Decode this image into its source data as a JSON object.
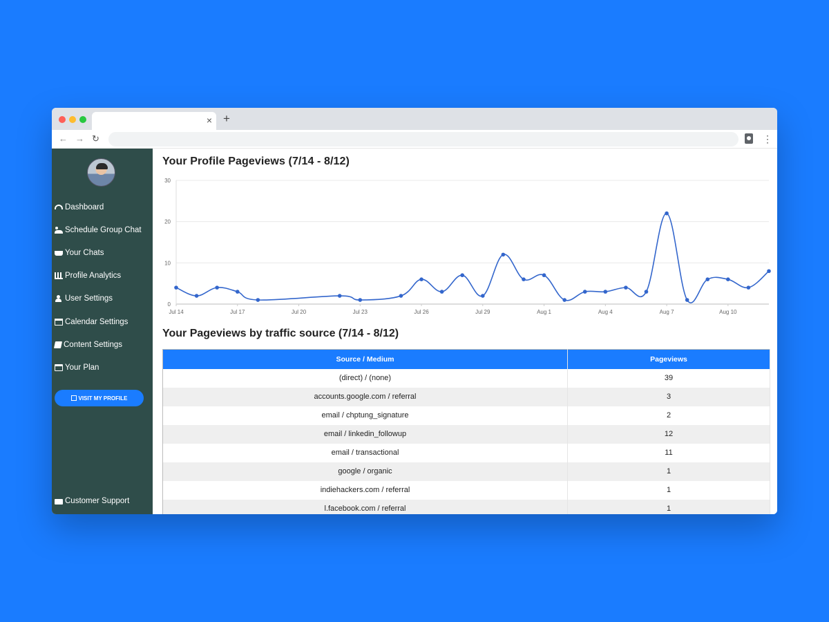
{
  "browser": {
    "tab_close": "×",
    "new_tab": "+",
    "nav_back": "←",
    "nav_forward": "→",
    "nav_reload": "↻",
    "menu": "⋮"
  },
  "sidebar": {
    "items": [
      {
        "label": "Dashboard",
        "icon": "dashboard-icon"
      },
      {
        "label": "Schedule Group Chat",
        "icon": "users-icon"
      },
      {
        "label": "Your Chats",
        "icon": "coffee-icon"
      },
      {
        "label": "Profile Analytics",
        "icon": "bar-chart-icon"
      },
      {
        "label": "User Settings",
        "icon": "user-icon"
      },
      {
        "label": "Calendar Settings",
        "icon": "calendar-icon"
      },
      {
        "label": "Content Settings",
        "icon": "book-icon"
      },
      {
        "label": "Your Plan",
        "icon": "credit-card-icon"
      }
    ],
    "visit_button": "VISIT MY PROFILE",
    "support": "Customer Support"
  },
  "main": {
    "chart_title": "Your Profile Pageviews (7/14 - 8/12)",
    "table_title": "Your Pageviews by traffic source (7/14 - 8/12)",
    "table": {
      "headers": [
        "Source / Medium",
        "Pageviews"
      ],
      "rows": [
        [
          "(direct) / (none)",
          "39"
        ],
        [
          "accounts.google.com / referral",
          "3"
        ],
        [
          "email / chptung_signature",
          "2"
        ],
        [
          "email / linkedin_followup",
          "12"
        ],
        [
          "email / transactional",
          "11"
        ],
        [
          "google / organic",
          "1"
        ],
        [
          "indiehackers.com / referral",
          "1"
        ],
        [
          "l.facebook.com / referral",
          "1"
        ]
      ]
    }
  },
  "chart_data": {
    "type": "line",
    "title": "Your Profile Pageviews (7/14 - 8/12)",
    "x": [
      "Jul 14",
      "Jul 15",
      "Jul 16",
      "Jul 17",
      "Jul 18",
      "Jul 19",
      "Jul 20",
      "Jul 21",
      "Jul 22",
      "Jul 23",
      "Jul 24",
      "Jul 25",
      "Jul 26",
      "Jul 27",
      "Jul 28",
      "Jul 29",
      "Jul 30",
      "Jul 31",
      "Aug 1",
      "Aug 2",
      "Aug 3",
      "Aug 4",
      "Aug 5",
      "Aug 6",
      "Aug 7",
      "Aug 8",
      "Aug 9",
      "Aug 10",
      "Aug 11",
      "Aug 12"
    ],
    "x_tick_labels": [
      "Jul 14",
      "Jul 17",
      "Jul 20",
      "Jul 23",
      "Jul 26",
      "Jul 29",
      "Aug 1",
      "Aug 4",
      "Aug 7",
      "Aug 10"
    ],
    "points": [
      {
        "x": "Jul 14",
        "y": 4
      },
      {
        "x": "Jul 15",
        "y": 2
      },
      {
        "x": "Jul 16",
        "y": 4
      },
      {
        "x": "Jul 17",
        "y": 3
      },
      {
        "x": "Jul 18",
        "y": 1
      },
      {
        "x": "Jul 22",
        "y": 2
      },
      {
        "x": "Jul 23",
        "y": 1
      },
      {
        "x": "Jul 25",
        "y": 2
      },
      {
        "x": "Jul 26",
        "y": 6
      },
      {
        "x": "Jul 27",
        "y": 3
      },
      {
        "x": "Jul 28",
        "y": 7
      },
      {
        "x": "Jul 29",
        "y": 2
      },
      {
        "x": "Jul 30",
        "y": 12
      },
      {
        "x": "Jul 31",
        "y": 6
      },
      {
        "x": "Aug 1",
        "y": 7
      },
      {
        "x": "Aug 2",
        "y": 1
      },
      {
        "x": "Aug 3",
        "y": 3
      },
      {
        "x": "Aug 4",
        "y": 3
      },
      {
        "x": "Aug 5",
        "y": 4
      },
      {
        "x": "Aug 6",
        "y": 3
      },
      {
        "x": "Aug 7",
        "y": 22
      },
      {
        "x": "Aug 8",
        "y": 1
      },
      {
        "x": "Aug 9",
        "y": 6
      },
      {
        "x": "Aug 10",
        "y": 6
      },
      {
        "x": "Aug 11",
        "y": 4
      },
      {
        "x": "Aug 12",
        "y": 8
      }
    ],
    "ylim": [
      0,
      30
    ],
    "y_ticks": [
      0,
      10,
      20,
      30
    ],
    "grid": true,
    "line_color": "#3366cc"
  }
}
